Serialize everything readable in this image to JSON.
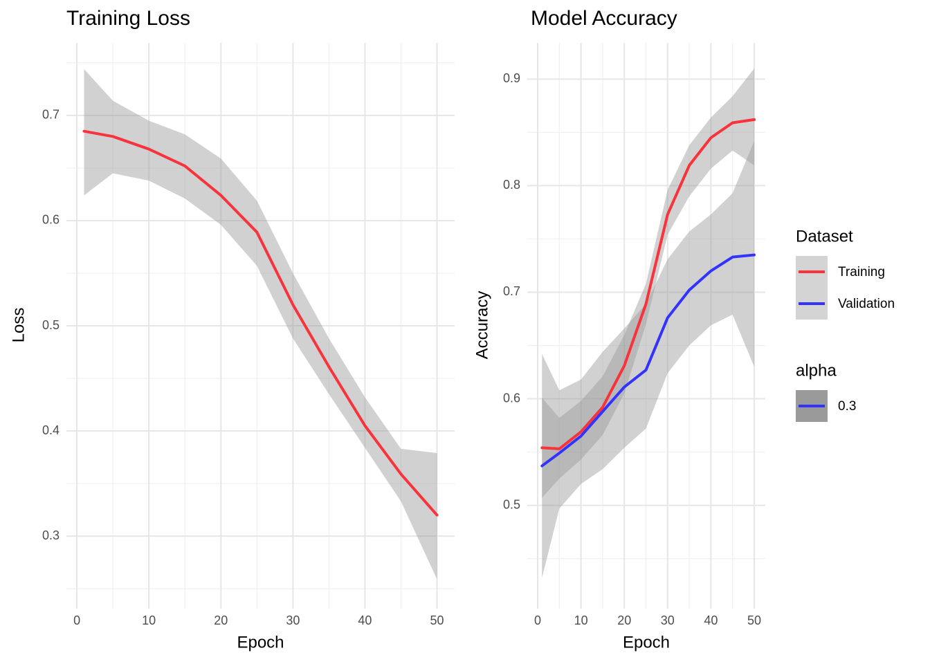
{
  "chart_data": [
    {
      "type": "line",
      "title": "Training Loss",
      "xlabel": "Epoch",
      "ylabel": "Loss",
      "x": [
        1,
        5,
        10,
        15,
        20,
        25,
        30,
        35,
        40,
        45,
        50
      ],
      "series": [
        {
          "name": "Training",
          "color": "#f8333c",
          "values": [
            0.685,
            0.68,
            0.668,
            0.652,
            0.624,
            0.589,
            0.52,
            0.461,
            0.405,
            0.359,
            0.32
          ],
          "band_low": [
            0.624,
            0.645,
            0.638,
            0.621,
            0.596,
            0.557,
            0.488,
            0.435,
            0.384,
            0.333,
            0.259
          ],
          "band_high": [
            0.744,
            0.714,
            0.695,
            0.682,
            0.659,
            0.619,
            0.55,
            0.488,
            0.432,
            0.383,
            0.379
          ]
        }
      ],
      "xlim": [
        -1.45,
        52.45
      ],
      "xticks": [
        0,
        10,
        20,
        30,
        40,
        50
      ],
      "minor_xticks": [
        5,
        15,
        25,
        35,
        45
      ],
      "ylim": [
        0.231,
        0.769
      ],
      "yticks": [
        0.3,
        0.4,
        0.5,
        0.6,
        0.7
      ],
      "minor_yticks": [
        0.25,
        0.35,
        0.45,
        0.55,
        0.65,
        0.75
      ],
      "grid": true
    },
    {
      "type": "line",
      "title": "Model Accuracy",
      "xlabel": "Epoch",
      "ylabel": "Accuracy",
      "x": [
        1,
        5,
        10,
        15,
        20,
        25,
        30,
        35,
        40,
        45,
        50
      ],
      "series": [
        {
          "name": "Training",
          "color": "#f8333c",
          "values": [
            0.554,
            0.553,
            0.569,
            0.592,
            0.631,
            0.689,
            0.773,
            0.819,
            0.845,
            0.859,
            0.862
          ],
          "band_low": [
            0.507,
            0.525,
            0.543,
            0.566,
            0.605,
            0.67,
            0.754,
            0.79,
            0.816,
            0.833,
            0.819
          ],
          "band_high": [
            0.601,
            0.582,
            0.598,
            0.621,
            0.66,
            0.708,
            0.796,
            0.838,
            0.864,
            0.884,
            0.91
          ]
        },
        {
          "name": "Validation",
          "color": "#3333ff",
          "values": [
            0.537,
            0.549,
            0.565,
            0.588,
            0.611,
            0.627,
            0.676,
            0.702,
            0.72,
            0.733,
            0.735
          ],
          "band_low": [
            0.432,
            0.497,
            0.52,
            0.534,
            0.554,
            0.572,
            0.624,
            0.65,
            0.669,
            0.679,
            0.63
          ],
          "band_high": [
            0.642,
            0.608,
            0.618,
            0.644,
            0.666,
            0.689,
            0.731,
            0.757,
            0.773,
            0.793,
            0.842
          ]
        }
      ],
      "xlim": [
        -2.4,
        52.56
      ],
      "xticks": [
        0,
        10,
        20,
        30,
        40,
        50
      ],
      "minor_xticks": [
        5,
        15,
        25,
        35,
        45
      ],
      "ylim": [
        0.403,
        0.934
      ],
      "yticks": [
        0.5,
        0.6,
        0.7,
        0.8,
        0.9
      ],
      "minor_yticks": [
        0.45,
        0.55,
        0.65,
        0.75,
        0.85
      ],
      "grid": true,
      "legend": "right",
      "legend_title": "Dataset",
      "alpha_legend": {
        "title": "alpha",
        "labels": [
          "0.3"
        ]
      }
    }
  ]
}
